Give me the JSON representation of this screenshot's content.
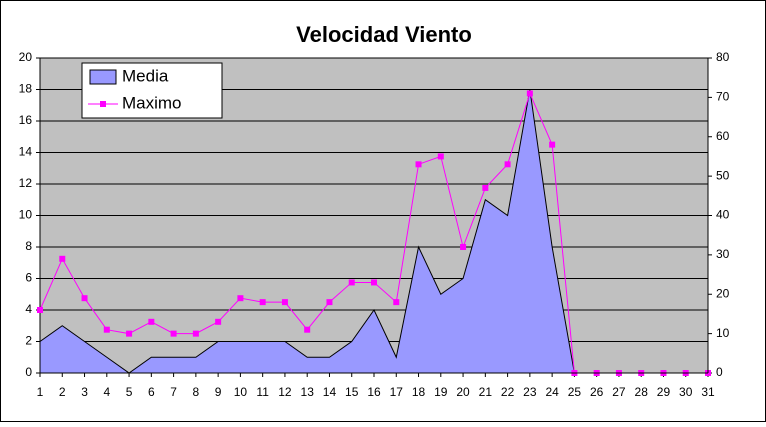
{
  "chart_data": {
    "type": "area-line",
    "title": "Velocidad Viento",
    "categories": [
      "1",
      "2",
      "3",
      "4",
      "5",
      "6",
      "7",
      "8",
      "9",
      "10",
      "11",
      "12",
      "13",
      "14",
      "15",
      "16",
      "17",
      "18",
      "19",
      "20",
      "21",
      "22",
      "23",
      "24",
      "25",
      "26",
      "27",
      "28",
      "29",
      "30",
      "31"
    ],
    "series": [
      {
        "name": "Media",
        "type": "area",
        "color": "#9999ff",
        "axis": "y",
        "values": [
          2,
          3,
          2,
          1,
          0,
          1,
          1,
          1,
          2,
          2,
          2,
          2,
          1,
          1,
          2,
          4,
          1,
          8,
          5,
          6,
          11,
          10,
          18,
          8,
          0,
          0,
          0,
          0,
          0,
          0,
          0
        ]
      },
      {
        "name": "Maximo",
        "type": "line",
        "color": "#ff00ff",
        "axis": "y2",
        "values": [
          16,
          29,
          19,
          11,
          10,
          13,
          10,
          10,
          13,
          19,
          18,
          18,
          11,
          18,
          23,
          23,
          18,
          53,
          55,
          32,
          47,
          53,
          71,
          58,
          0,
          0,
          0,
          0,
          0,
          0,
          0
        ]
      }
    ],
    "ylim": [
      0,
      20
    ],
    "yticks": [
      0,
      2,
      4,
      6,
      8,
      10,
      12,
      14,
      16,
      18,
      20
    ],
    "y2lim": [
      0,
      80
    ],
    "y2ticks": [
      0,
      10,
      20,
      30,
      40,
      50,
      60,
      70,
      80
    ],
    "grid": true,
    "legend": "top-left"
  }
}
